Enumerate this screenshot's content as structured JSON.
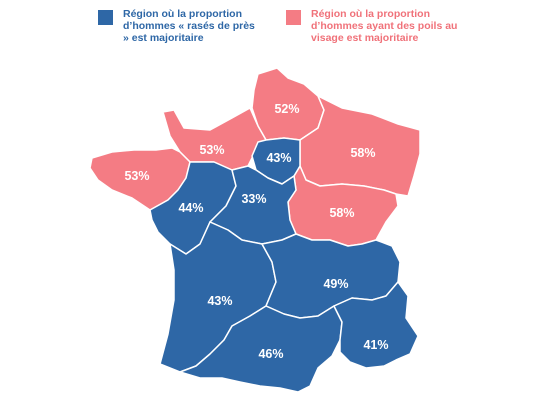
{
  "colors": {
    "shaved_majority": "#2e67a6",
    "beard_majority": "#f47c84",
    "shaved_text": "#2e67a6",
    "beard_text": "#f0727a"
  },
  "legend": {
    "shaved": "Région où la proportion d’hommes « rasés de près » est majoritaire",
    "beard": "Région où la proportion d’hommes ayant des poils au visage est majoritaire"
  },
  "regions": [
    {
      "id": "nord",
      "value": "52%",
      "category": "beard"
    },
    {
      "id": "normandie",
      "value": "53%",
      "category": "beard"
    },
    {
      "id": "bretagne",
      "value": "53%",
      "category": "beard"
    },
    {
      "id": "grand-est",
      "value": "58%",
      "category": "beard"
    },
    {
      "id": "bourgogne",
      "value": "58%",
      "category": "beard"
    },
    {
      "id": "ile-de-france",
      "value": "43%",
      "category": "shaved"
    },
    {
      "id": "pays-de-la-loire",
      "value": "44%",
      "category": "shaved"
    },
    {
      "id": "centre",
      "value": "33%",
      "category": "shaved"
    },
    {
      "id": "nouvelle-aquitaine",
      "value": "43%",
      "category": "shaved"
    },
    {
      "id": "auvergne-rhone-alpes",
      "value": "49%",
      "category": "shaved"
    },
    {
      "id": "occitanie",
      "value": "46%",
      "category": "shaved"
    },
    {
      "id": "paca",
      "value": "41%",
      "category": "shaved"
    }
  ]
}
